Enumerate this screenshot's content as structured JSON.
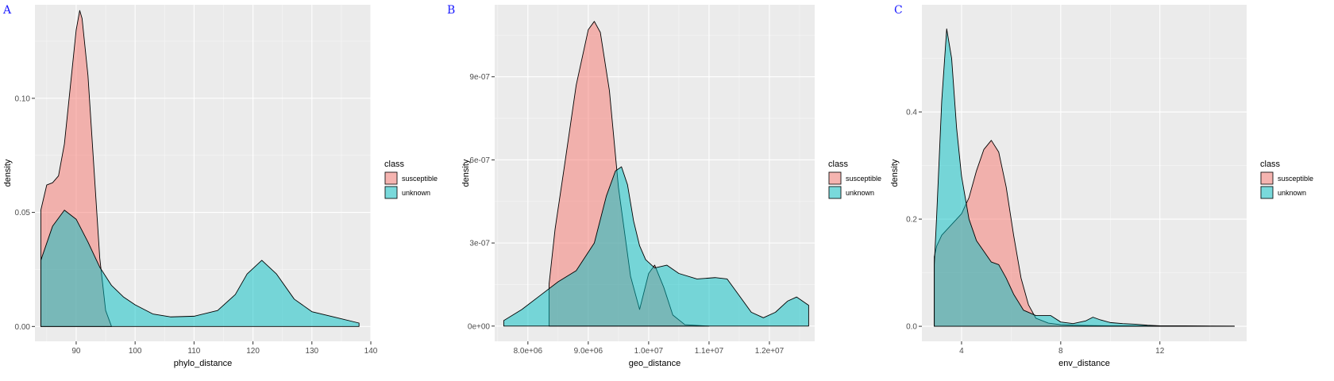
{
  "chart_data": [
    {
      "type": "area",
      "panel_label": "A",
      "xlabel": "phylo_distance",
      "ylabel": "density",
      "x_ticks": [
        90,
        100,
        110,
        120,
        130,
        140
      ],
      "y_ticks": [
        0.0,
        0.05,
        0.1
      ],
      "y_tick_labels": [
        "0.00",
        "0.05",
        "0.10"
      ],
      "xlim": [
        83,
        140
      ],
      "ylim": [
        -0.0065,
        0.141
      ],
      "grid": true,
      "legend": {
        "title": "class",
        "placement": "right"
      },
      "series": [
        {
          "name": "susceptible",
          "color": "#F8766D",
          "x": [
            84,
            85,
            86,
            87,
            88,
            89,
            90,
            90.6,
            91,
            92,
            93,
            94,
            95,
            96
          ],
          "y": [
            0.051,
            0.062,
            0.063,
            0.066,
            0.08,
            0.105,
            0.13,
            0.1385,
            0.135,
            0.11,
            0.07,
            0.03,
            0.007,
            0
          ]
        },
        {
          "name": "unknown",
          "color": "#00BFC4",
          "x": [
            84,
            86,
            88,
            90,
            92,
            94,
            96,
            98,
            100,
            103,
            106,
            110,
            114,
            117,
            119,
            121.5,
            124,
            127,
            130,
            134,
            138
          ],
          "y": [
            0.029,
            0.044,
            0.051,
            0.047,
            0.037,
            0.026,
            0.018,
            0.013,
            0.0095,
            0.0055,
            0.0042,
            0.0045,
            0.007,
            0.014,
            0.023,
            0.029,
            0.023,
            0.012,
            0.0065,
            0.004,
            0.0015
          ]
        }
      ]
    },
    {
      "type": "area",
      "panel_label": "B",
      "xlabel": "geo_distance",
      "ylabel": "density",
      "x_ticks": [
        8000000,
        9000000,
        10000000,
        11000000,
        12000000
      ],
      "x_tick_labels": [
        "8.0e+06",
        "9.0e+06",
        "1.0e+07",
        "1.1e+07",
        "1.2e+07"
      ],
      "y_ticks": [
        0,
        3e-07,
        6e-07,
        9e-07
      ],
      "y_tick_labels": [
        "0e+00",
        "3e-07",
        "6e-07",
        "9e-07"
      ],
      "xlim": [
        7450000,
        12750000
      ],
      "ylim": [
        -5.5e-08,
        1.16e-06
      ],
      "grid": true,
      "legend": {
        "title": "class",
        "placement": "right"
      },
      "series": [
        {
          "name": "susceptible",
          "color": "#F8766D",
          "x": [
            8350000,
            8450000,
            8600000,
            8800000,
            9000000,
            9100000,
            9200000,
            9350000,
            9500000,
            9700000,
            9850000,
            10000000,
            10100000,
            10250000,
            10400000,
            10600000,
            11000000
          ],
          "y": [
            1.5e-07,
            3.5e-07,
            5.7e-07,
            8.7e-07,
            1.07e-06,
            1.1e-06,
            1.06e-06,
            8.5e-07,
            5e-07,
            1.8e-07,
            6e-08,
            1.9e-07,
            2.2e-07,
            1.4e-07,
            4e-08,
            5e-09,
            0
          ]
        },
        {
          "name": "unknown",
          "color": "#00BFC4",
          "x": [
            7600000,
            7900000,
            8200000,
            8500000,
            8800000,
            9100000,
            9300000,
            9450000,
            9550000,
            9650000,
            9750000,
            9850000,
            9950000,
            10100000,
            10300000,
            10500000,
            10800000,
            11100000,
            11300000,
            11500000,
            11700000,
            11900000,
            12100000,
            12300000,
            12450000,
            12650000
          ],
          "y": [
            2e-08,
            6e-08,
            1.1e-07,
            1.6e-07,
            2e-07,
            3e-07,
            4.7e-07,
            5.6e-07,
            5.75e-07,
            5.1e-07,
            3.8e-07,
            2.9e-07,
            2.4e-07,
            2.1e-07,
            2.2e-07,
            1.9e-07,
            1.7e-07,
            1.75e-07,
            1.7e-07,
            1.1e-07,
            5e-08,
            3e-08,
            5e-08,
            9e-08,
            1.05e-07,
            7.5e-08
          ]
        }
      ]
    },
    {
      "type": "area",
      "panel_label": "C",
      "xlabel": "env_distance",
      "ylabel": "density",
      "x_ticks": [
        4,
        8,
        12
      ],
      "y_ticks": [
        0.0,
        0.2,
        0.4
      ],
      "y_tick_labels": [
        "0.0",
        "0.2",
        "0.4"
      ],
      "xlim": [
        2.4,
        15.5
      ],
      "ylim": [
        -0.028,
        0.6
      ],
      "grid": true,
      "legend": {
        "title": "class",
        "placement": "right"
      },
      "series": [
        {
          "name": "susceptible",
          "color": "#F8766D",
          "x": [
            2.9,
            3.0,
            3.2,
            3.5,
            3.8,
            4.0,
            4.3,
            4.6,
            4.9,
            5.2,
            5.5,
            5.8,
            6.1,
            6.4,
            6.7,
            7.0,
            7.5,
            8.0,
            8.5,
            9.0,
            10.0,
            11.0,
            12.0,
            13.0,
            14.0,
            15.0
          ],
          "y": [
            0.13,
            0.15,
            0.17,
            0.185,
            0.2,
            0.21,
            0.24,
            0.29,
            0.33,
            0.347,
            0.325,
            0.26,
            0.17,
            0.09,
            0.04,
            0.015,
            0.006,
            0.003,
            0.002,
            0.0015,
            0.001,
            0.001,
            0.0008,
            0.0005,
            0.0003,
            0.0002
          ]
        },
        {
          "name": "unknown",
          "color": "#00BFC4",
          "x": [
            2.9,
            3.0,
            3.2,
            3.4,
            3.6,
            3.8,
            4.0,
            4.3,
            4.6,
            4.9,
            5.2,
            5.5,
            5.8,
            6.1,
            6.5,
            7.0,
            7.6,
            8.0,
            8.5,
            9.0,
            9.3,
            9.6,
            10.0,
            10.5,
            11.0,
            11.5,
            12.0,
            13.0,
            14.0,
            15.0
          ],
          "y": [
            0.115,
            0.21,
            0.42,
            0.555,
            0.5,
            0.37,
            0.28,
            0.2,
            0.16,
            0.14,
            0.12,
            0.115,
            0.09,
            0.06,
            0.03,
            0.02,
            0.02,
            0.008,
            0.005,
            0.01,
            0.017,
            0.012,
            0.007,
            0.005,
            0.004,
            0.002,
            0.001,
            0.0008,
            0.0005,
            0.0004
          ]
        }
      ]
    }
  ]
}
